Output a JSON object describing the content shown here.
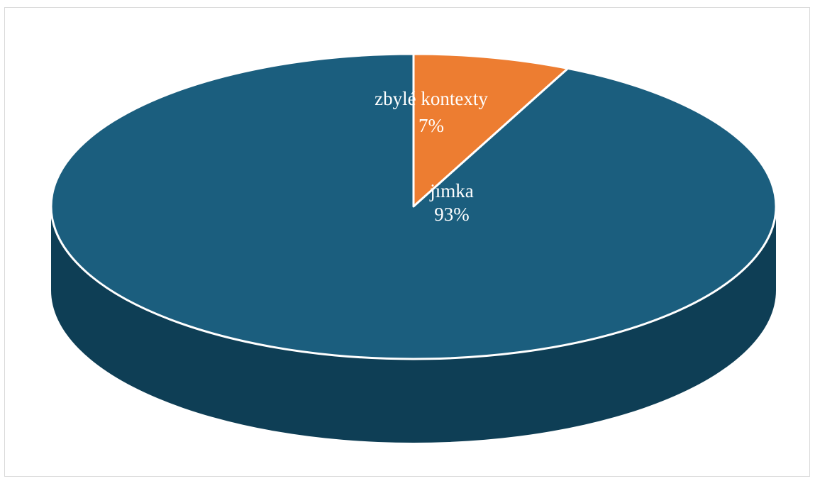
{
  "chart_data": {
    "type": "pie",
    "style": "3d",
    "title": "",
    "categories": [
      "zbylé kontexty",
      "jímka"
    ],
    "values": [
      7,
      93
    ],
    "value_labels": [
      "7%",
      "93%"
    ],
    "colors": {
      "zbylé kontexty": "#ED7D31",
      "jímka": "#1B5E7E"
    },
    "side_colors": {
      "zbylé kontexty": "#B85F24",
      "jímka": "#0E3E55"
    },
    "legend": "none",
    "labels_placement": "inside"
  }
}
